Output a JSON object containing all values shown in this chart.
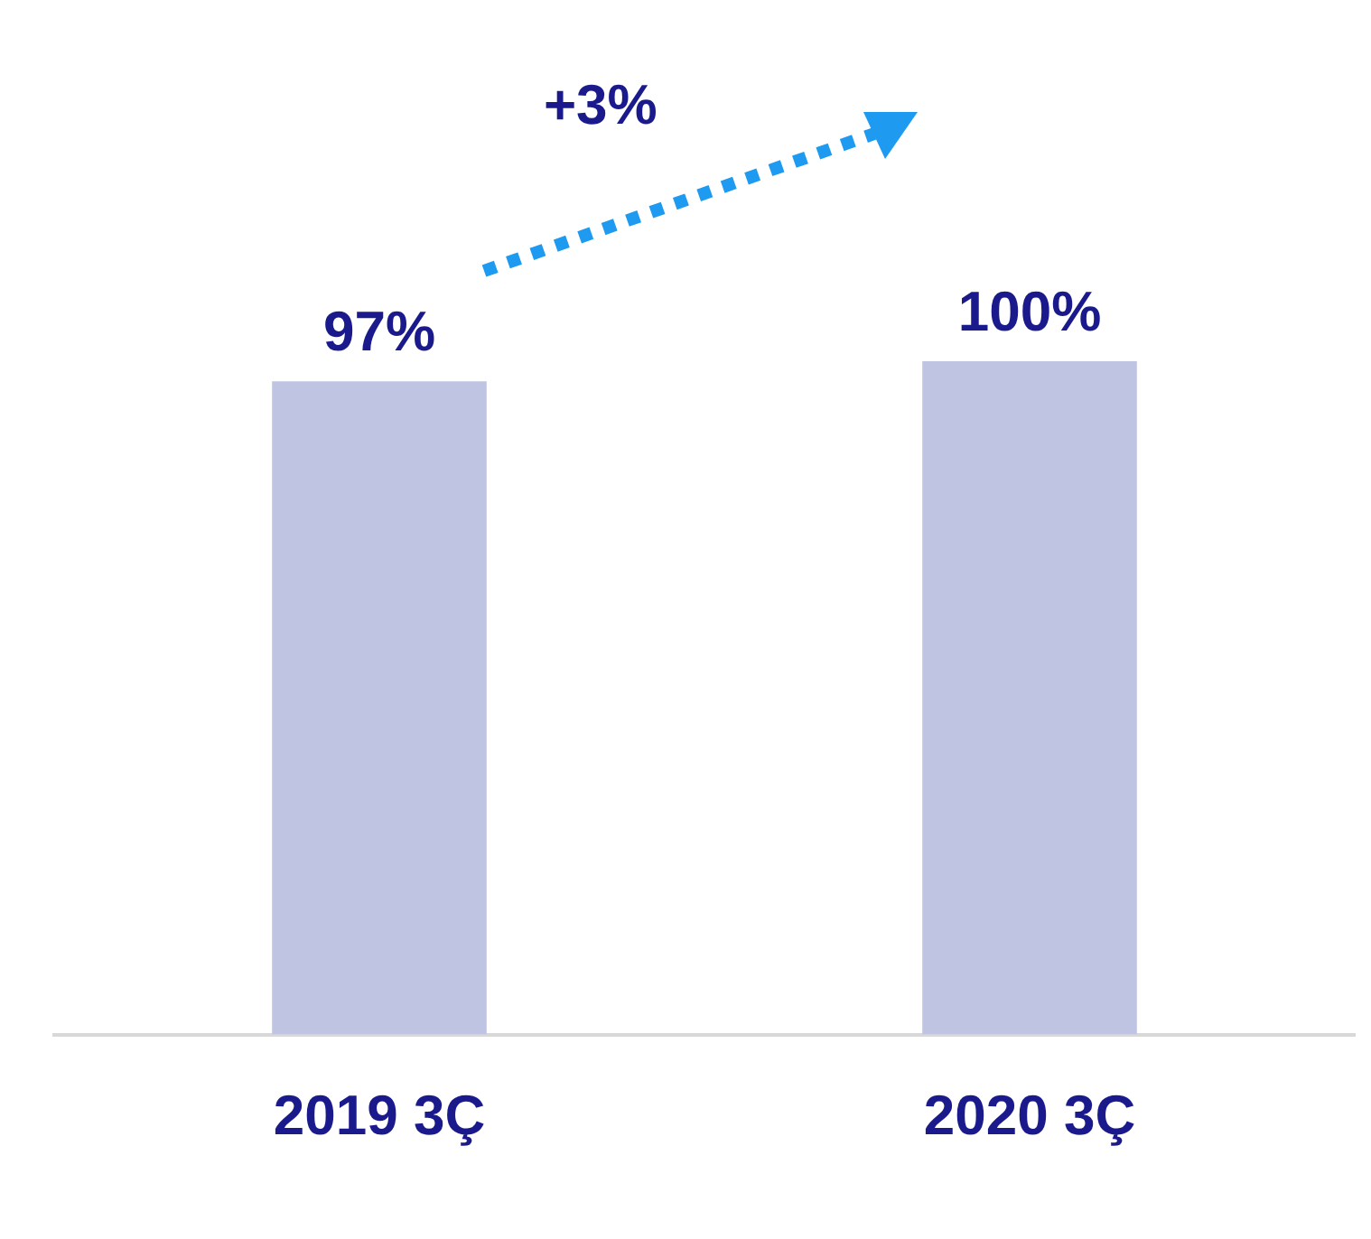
{
  "chart_data": {
    "type": "bar",
    "categories": [
      "2019 3Ç",
      "2020 3Ç"
    ],
    "values": [
      97,
      100
    ],
    "color": "#c0c4e3",
    "value_labels": [
      "97%",
      "100%"
    ],
    "grid": false,
    "legend": false,
    "tick_labels": "x",
    "annotations": [
      "+3%"
    ]
  }
}
